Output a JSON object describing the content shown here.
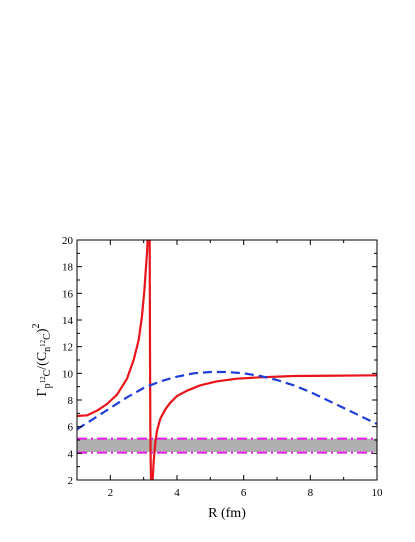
{
  "chart_data": {
    "type": "line",
    "title": "",
    "xlabel": "R (fm)",
    "ylabel": {
      "base": "Γ",
      "sub1_pre": "p",
      "sub1_sup": "12",
      "sub1_post": "C",
      "mid": "/(C",
      "sub2_pre": "n",
      "sub2_sup": "12",
      "sub2_post": "C",
      "close": ")",
      "power": "2"
    },
    "xlim": [
      1,
      10
    ],
    "ylim": [
      2,
      20
    ],
    "x_ticks": [
      2,
      4,
      6,
      8,
      10
    ],
    "x_tick_labels": [
      "2",
      "4",
      "6",
      "8",
      "10"
    ],
    "y_ticks": [
      2,
      4,
      6,
      8,
      10,
      12,
      14,
      16,
      18,
      20
    ],
    "y_tick_labels": [
      "2",
      "4",
      "6",
      "8",
      "10",
      "12",
      "14",
      "16",
      "18",
      "20"
    ],
    "band": {
      "y_range": [
        4.1,
        5.1
      ],
      "color": "#b0b0b0"
    },
    "series": [
      {
        "style": "solid",
        "color": "#e8141b",
        "segments": [
          {
            "x": [
              1.0,
              1.3,
              1.6,
              1.9,
              2.2,
              2.5,
              2.7,
              2.85,
              2.95,
              3.02,
              3.07,
              3.1,
              3.12
            ],
            "y": [
              6.8,
              6.85,
              7.2,
              7.7,
              8.4,
              9.6,
              11.0,
              12.5,
              14.3,
              16.2,
              18.0,
              19.0,
              20.0
            ]
          },
          {
            "x": [
              3.18,
              3.19,
              3.2,
              3.21,
              3.22
            ],
            "y": [
              20.0,
              12.0,
              6.0,
              3.5,
              2.0
            ]
          },
          {
            "x": [
              3.27,
              3.3,
              3.35,
              3.4,
              3.5,
              3.65,
              3.8,
              4.0,
              4.3,
              4.7,
              5.2,
              5.8,
              6.5,
              7.5,
              8.5,
              10.0
            ],
            "y": [
              2.0,
              3.4,
              4.8,
              5.7,
              6.6,
              7.3,
              7.8,
              8.3,
              8.7,
              9.1,
              9.4,
              9.6,
              9.7,
              9.8,
              9.82,
              9.85
            ]
          }
        ]
      },
      {
        "style": "dashed",
        "color": "#1f3ed6",
        "segments": [
          {
            "x": [
              1.0,
              1.5,
              2.0,
              2.5,
              3.0,
              3.5,
              4.0,
              4.5,
              5.0,
              5.5,
              6.0,
              6.5,
              7.0,
              7.5,
              8.0,
              8.5,
              9.0,
              9.5,
              10.0
            ],
            "y": [
              5.8,
              6.6,
              7.4,
              8.2,
              8.9,
              9.4,
              9.75,
              10.0,
              10.1,
              10.1,
              10.0,
              9.8,
              9.5,
              9.1,
              8.6,
              8.0,
              7.4,
              6.8,
              6.2
            ]
          }
        ]
      },
      {
        "style": "dash-dot",
        "color": "#e81ae8",
        "segments": [
          {
            "x": [
              1.0,
              10.0
            ],
            "y": [
              5.1,
              5.1
            ]
          }
        ]
      },
      {
        "style": "dash-dot",
        "color": "#e81ae8",
        "segments": [
          {
            "x": [
              1.0,
              10.0
            ],
            "y": [
              4.05,
              4.05
            ]
          }
        ]
      }
    ],
    "grid": false,
    "legend": "none"
  }
}
